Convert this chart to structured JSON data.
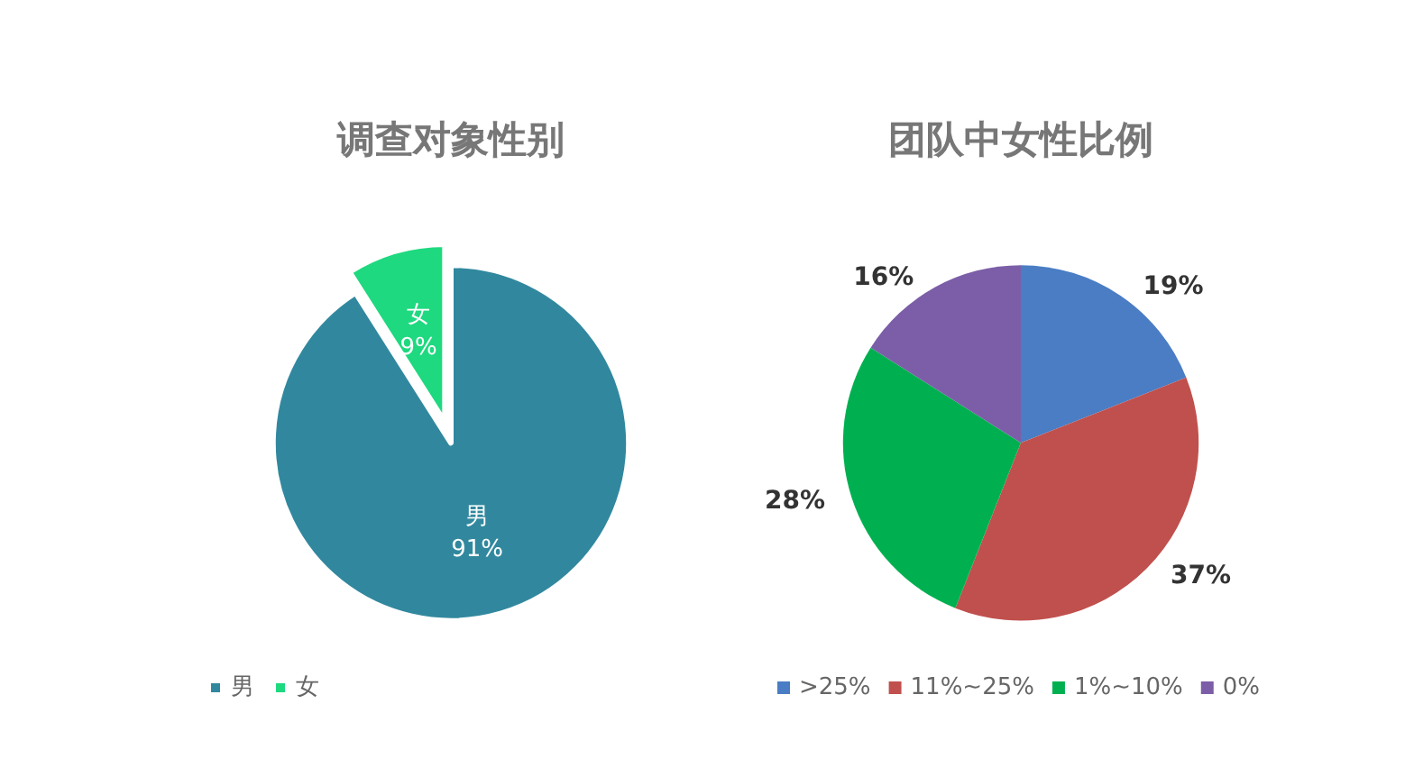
{
  "chart_data": [
    {
      "type": "pie",
      "title": "调查对象性别",
      "categories": [
        "男",
        "女"
      ],
      "values": [
        91,
        9
      ],
      "colors": [
        "#31889e",
        "#1ed97f"
      ],
      "value_labels": [
        "91%",
        "9%"
      ],
      "legend": "bottom left"
    },
    {
      "type": "pie",
      "title": "团队中女性比例",
      "categories": [
        ">25%",
        "11%~25%",
        "1%~10%",
        "0%"
      ],
      "values": [
        19,
        37,
        28,
        16
      ],
      "colors": [
        "#4a7dc4",
        "#c0504d",
        "#00b050",
        "#7b5ea7"
      ],
      "value_labels": [
        "19%",
        "37%",
        "28%",
        "16%"
      ],
      "legend": "bottom left"
    }
  ]
}
